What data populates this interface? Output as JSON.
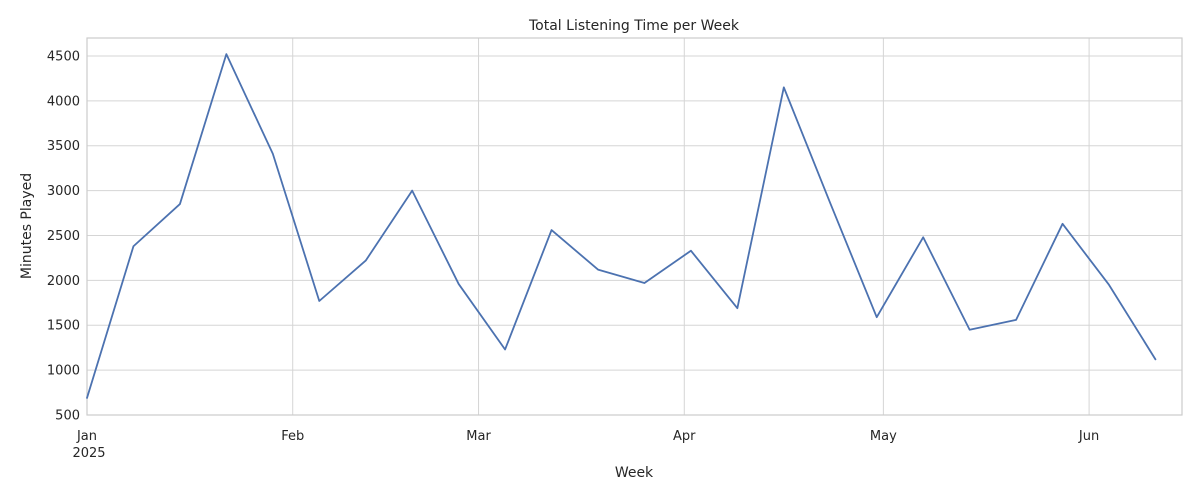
{
  "chart_data": {
    "type": "line",
    "title": "Total Listening Time per Week",
    "xlabel": "Week",
    "ylabel": "Minutes Played",
    "x_axis_type": "date",
    "xlim": [
      "2025-01-01",
      "2025-06-15"
    ],
    "ylim": [
      500,
      4700
    ],
    "grid": true,
    "legend": "none",
    "colors": {
      "series": "#4c72b0",
      "grid": "#d5d5d5",
      "frame": "#cccccc",
      "text": "#262626"
    },
    "x_ticks": [
      {
        "date": "2025-01-01",
        "label": "Jan",
        "sublabel": "2025"
      },
      {
        "date": "2025-02-01",
        "label": "Feb",
        "sublabel": ""
      },
      {
        "date": "2025-03-01",
        "label": "Mar",
        "sublabel": ""
      },
      {
        "date": "2025-04-01",
        "label": "Apr",
        "sublabel": ""
      },
      {
        "date": "2025-05-01",
        "label": "May",
        "sublabel": ""
      },
      {
        "date": "2025-06-01",
        "label": "Jun",
        "sublabel": ""
      }
    ],
    "y_ticks": [
      500,
      1000,
      1500,
      2000,
      2500,
      3000,
      3500,
      4000,
      4500
    ],
    "series": [
      {
        "name": "",
        "color": "#4c72b0",
        "x": [
          "2025-01-01",
          "2025-01-08",
          "2025-01-15",
          "2025-01-22",
          "2025-01-29",
          "2025-02-05",
          "2025-02-12",
          "2025-02-19",
          "2025-02-26",
          "2025-03-05",
          "2025-03-12",
          "2025-03-19",
          "2025-03-26",
          "2025-04-02",
          "2025-04-09",
          "2025-04-16",
          "2025-04-23",
          "2025-04-30",
          "2025-05-07",
          "2025-05-14",
          "2025-05-21",
          "2025-05-28",
          "2025-06-04",
          "2025-06-11"
        ],
        "y": [
          690,
          2380,
          2850,
          4520,
          3410,
          1770,
          2220,
          3000,
          1960,
          1230,
          2560,
          2120,
          1970,
          2330,
          1690,
          4150,
          2860,
          1590,
          2480,
          1450,
          1560,
          2630,
          1950,
          1120
        ]
      }
    ]
  }
}
